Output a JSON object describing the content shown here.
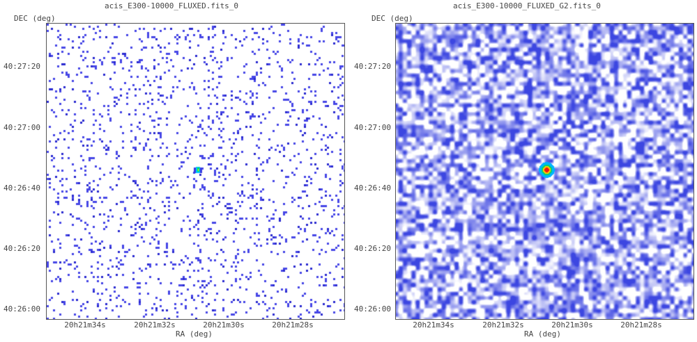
{
  "chart_data": [
    {
      "type": "heatmap",
      "title": "acis_E300-10000_FLUXED.fits_0",
      "xlabel": "RA (deg)",
      "ylabel": "DEC (deg)",
      "x_ticks": [
        "20h21m34s",
        "20h21m32s",
        "20h21m30s",
        "20h21m28s"
      ],
      "y_ticks": [
        "40:27:20",
        "40:27:00",
        "40:26:40",
        "40:26:20",
        "40:26:00"
      ],
      "source_position": {
        "ra": "20h21m30.6s",
        "dec": "40:26:46"
      },
      "style": "sparse-counts",
      "colormap": [
        "#ffffff",
        "#3a3ae0",
        "#00c8ff",
        "#ffff00",
        "#ff0000"
      ]
    },
    {
      "type": "heatmap",
      "title": "acis_E300-10000_FLUXED_G2.fits_0",
      "xlabel": "RA (deg)",
      "ylabel": "DEC (deg)",
      "x_ticks": [
        "20h21m34s",
        "20h21m32s",
        "20h21m30s",
        "20h21m28s"
      ],
      "y_ticks": [
        "40:27:20",
        "40:27:00",
        "40:26:40",
        "40:26:20",
        "40:26:00"
      ],
      "source_position": {
        "ra": "20h21m30.6s",
        "dec": "40:26:46"
      },
      "style": "smoothed",
      "colormap": [
        "#ffffff",
        "#3a3ae0",
        "#00c8ff",
        "#ffff00",
        "#ff0000"
      ]
    }
  ]
}
